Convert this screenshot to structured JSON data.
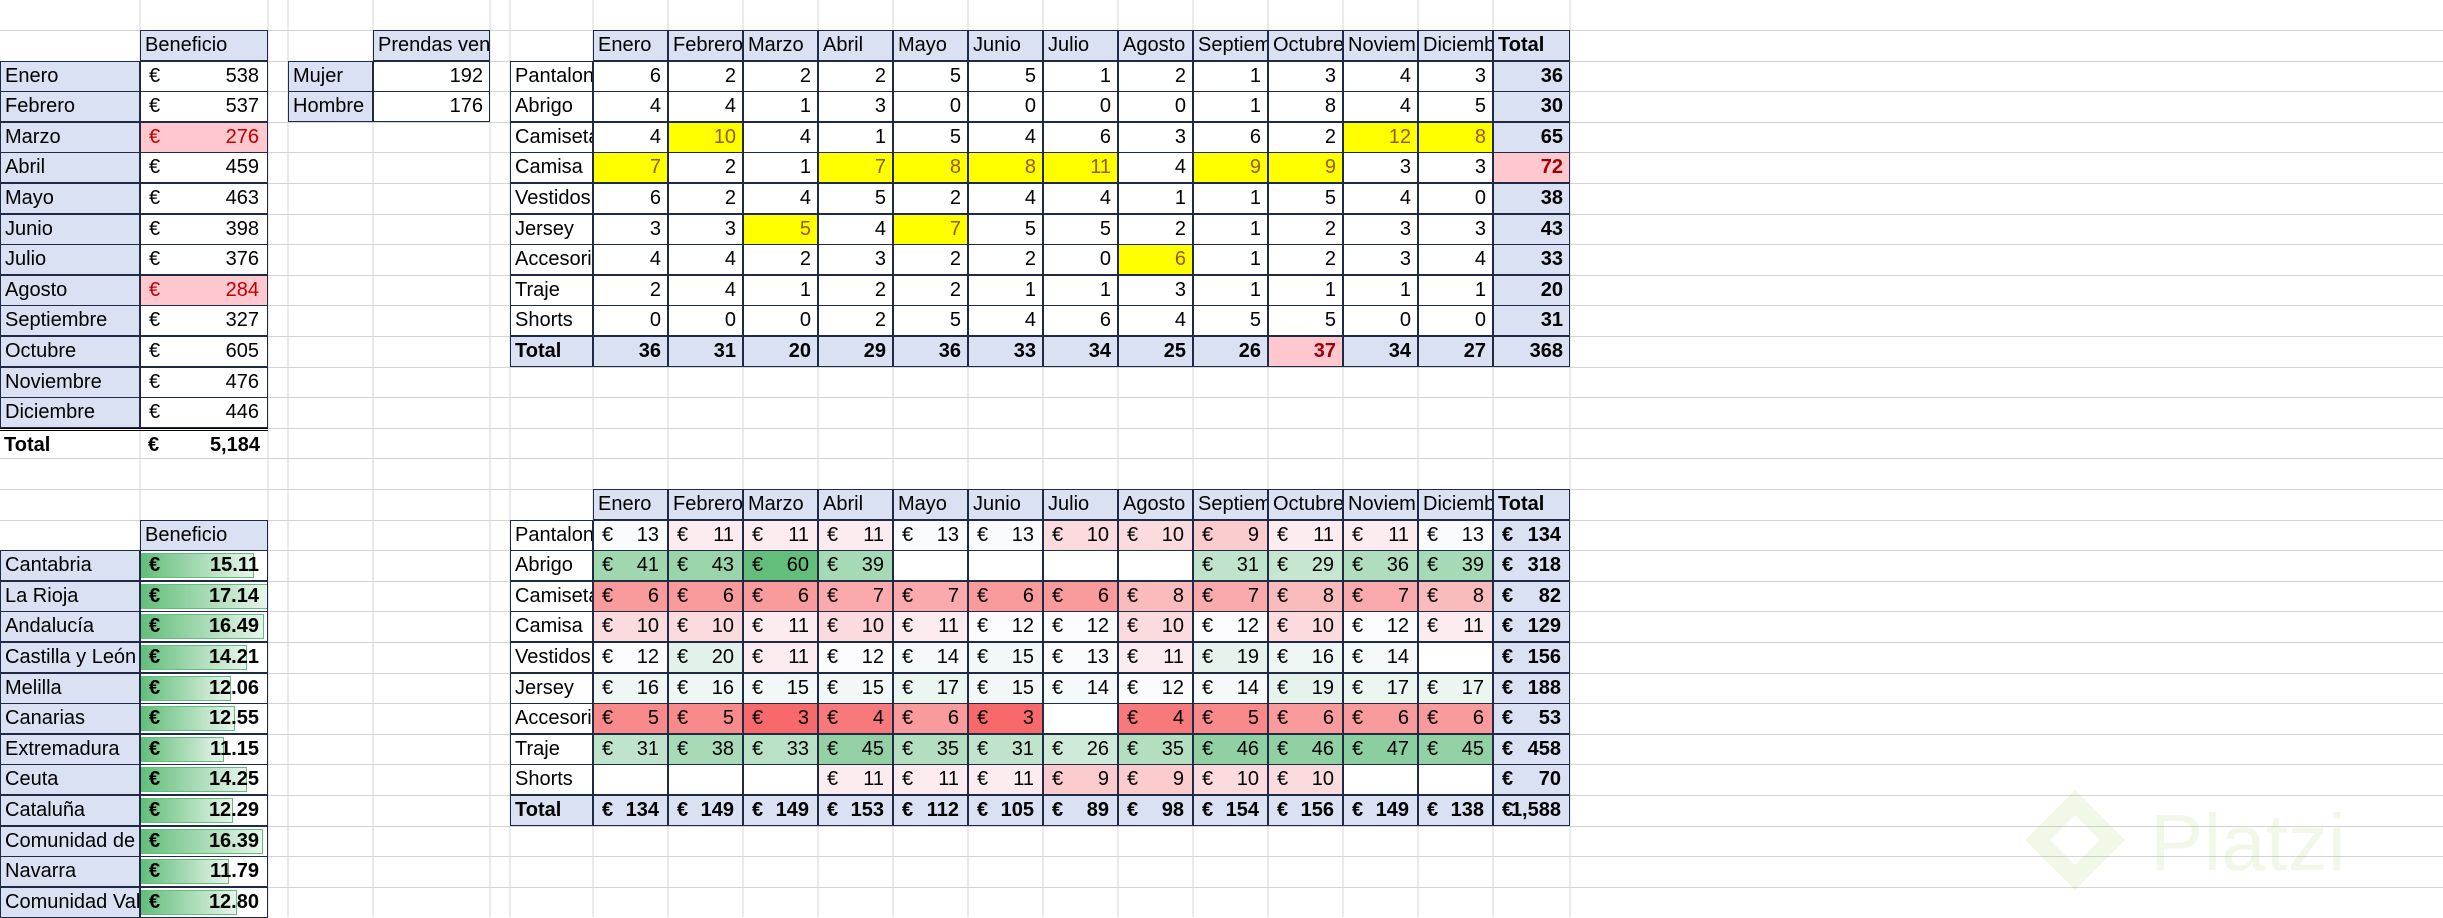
{
  "monthly_profit": {
    "header": "Beneficio",
    "currency": "€",
    "rows": [
      {
        "label": "Enero",
        "value": "538"
      },
      {
        "label": "Febrero",
        "value": "537"
      },
      {
        "label": "Marzo",
        "value": "276",
        "highlight": "low"
      },
      {
        "label": "Abril",
        "value": "459"
      },
      {
        "label": "Mayo",
        "value": "463"
      },
      {
        "label": "Junio",
        "value": "398"
      },
      {
        "label": "Julio",
        "value": "376"
      },
      {
        "label": "Agosto",
        "value": "284",
        "highlight": "low"
      },
      {
        "label": "Septiembre",
        "value": "327"
      },
      {
        "label": "Octubre",
        "value": "605"
      },
      {
        "label": "Noviembre",
        "value": "476"
      },
      {
        "label": "Diciembre",
        "value": "446"
      }
    ],
    "total_label": "Total",
    "total_value": "5,184"
  },
  "gender_sales": {
    "header": "Prendas vendidas",
    "rows": [
      {
        "label": "Mujer",
        "value": "192"
      },
      {
        "label": "Hombre",
        "value": "176"
      }
    ]
  },
  "region_profit": {
    "header": "Beneficio",
    "currency": "€",
    "rows": [
      {
        "label": "Cantabria",
        "value": "15.11"
      },
      {
        "label": "La Rioja",
        "value": "17.14"
      },
      {
        "label": "Andalucía",
        "value": "16.49"
      },
      {
        "label": "Castilla y León",
        "value": "14.21"
      },
      {
        "label": "Melilla",
        "value": "12.06"
      },
      {
        "label": "Canarias",
        "value": "12.55"
      },
      {
        "label": "Extremadura",
        "value": "11.15"
      },
      {
        "label": "Ceuta",
        "value": "14.25"
      },
      {
        "label": "Cataluña",
        "value": "12.29"
      },
      {
        "label": "Comunidad de Madrid",
        "value": "16.39"
      },
      {
        "label": "Navarra",
        "value": "11.79"
      },
      {
        "label": "Comunidad Valenciana",
        "value": "12.80"
      }
    ]
  },
  "months": [
    "Enero",
    "Febrero",
    "Marzo",
    "Abril",
    "Mayo",
    "Junio",
    "Julio",
    "Agosto",
    "Septiembre",
    "Octubre",
    "Noviembre",
    "Diciembre"
  ],
  "total_label": "Total",
  "units_table": {
    "rows": [
      {
        "label": "Pantalones",
        "values": [
          "6",
          "2",
          "2",
          "2",
          "5",
          "5",
          "1",
          "2",
          "1",
          "3",
          "4",
          "3"
        ],
        "total": "36",
        "hl": []
      },
      {
        "label": "Abrigo",
        "values": [
          "4",
          "4",
          "1",
          "3",
          "0",
          "0",
          "0",
          "0",
          "1",
          "8",
          "4",
          "5"
        ],
        "total": "30",
        "hl": []
      },
      {
        "label": "Camiseta",
        "values": [
          "4",
          "10",
          "4",
          "1",
          "5",
          "4",
          "6",
          "3",
          "6",
          "2",
          "12",
          "8"
        ],
        "total": "65",
        "hl": [
          1,
          10,
          11
        ]
      },
      {
        "label": "Camisa",
        "values": [
          "7",
          "2",
          "1",
          "7",
          "8",
          "8",
          "11",
          "4",
          "9",
          "9",
          "3",
          "3"
        ],
        "total": "72",
        "hl": [
          0,
          3,
          4,
          5,
          6,
          8,
          9
        ],
        "total_pink": true
      },
      {
        "label": "Vestidos",
        "values": [
          "6",
          "2",
          "4",
          "5",
          "2",
          "4",
          "4",
          "1",
          "1",
          "5",
          "4",
          "0"
        ],
        "total": "38",
        "hl": []
      },
      {
        "label": "Jersey",
        "values": [
          "3",
          "3",
          "5",
          "4",
          "7",
          "5",
          "5",
          "2",
          "1",
          "2",
          "3",
          "3"
        ],
        "total": "43",
        "hl": [
          2,
          4
        ]
      },
      {
        "label": "Accesorios",
        "values": [
          "4",
          "4",
          "2",
          "3",
          "2",
          "2",
          "0",
          "6",
          "1",
          "2",
          "3",
          "4"
        ],
        "total": "33",
        "hl": [
          7
        ]
      },
      {
        "label": "Traje",
        "values": [
          "2",
          "4",
          "1",
          "2",
          "2",
          "1",
          "1",
          "3",
          "1",
          "1",
          "1",
          "1"
        ],
        "total": "20",
        "hl": []
      },
      {
        "label": "Shorts",
        "values": [
          "0",
          "0",
          "0",
          "2",
          "5",
          "4",
          "6",
          "4",
          "5",
          "5",
          "0",
          "0"
        ],
        "total": "31",
        "hl": []
      }
    ],
    "totals": [
      "36",
      "31",
      "20",
      "29",
      "36",
      "33",
      "34",
      "25",
      "26",
      "37",
      "34",
      "27"
    ],
    "grand_total": "368",
    "totals_pink": [
      9
    ]
  },
  "profit_table": {
    "currency": "€",
    "rows": [
      {
        "label": "Pantalones",
        "values": [
          "13",
          "11",
          "11",
          "11",
          "13",
          "13",
          "10",
          "10",
          "9",
          "11",
          "11",
          "13"
        ],
        "total": "134"
      },
      {
        "label": "Abrigo",
        "values": [
          "41",
          "43",
          "60",
          "39",
          "",
          "",
          "",
          "",
          "31",
          "29",
          "36",
          "39"
        ],
        "total": "318"
      },
      {
        "label": "Camiseta",
        "values": [
          "6",
          "6",
          "6",
          "7",
          "7",
          "6",
          "6",
          "8",
          "7",
          "8",
          "7",
          "8"
        ],
        "total": "82"
      },
      {
        "label": "Camisa",
        "values": [
          "10",
          "10",
          "11",
          "10",
          "11",
          "12",
          "12",
          "10",
          "12",
          "10",
          "12",
          "11"
        ],
        "total": "129"
      },
      {
        "label": "Vestidos",
        "values": [
          "12",
          "20",
          "11",
          "12",
          "14",
          "15",
          "13",
          "11",
          "19",
          "16",
          "14",
          ""
        ],
        "total": "156"
      },
      {
        "label": "Jersey",
        "values": [
          "16",
          "16",
          "15",
          "15",
          "17",
          "15",
          "14",
          "12",
          "14",
          "19",
          "17",
          "17"
        ],
        "total": "188"
      },
      {
        "label": "Accesorios",
        "values": [
          "5",
          "5",
          "3",
          "4",
          "6",
          "3",
          "",
          "4",
          "5",
          "6",
          "6",
          "6"
        ],
        "total": "53"
      },
      {
        "label": "Traje",
        "values": [
          "31",
          "38",
          "33",
          "45",
          "35",
          "31",
          "26",
          "35",
          "46",
          "46",
          "47",
          "45"
        ],
        "total": "458"
      },
      {
        "label": "Shorts",
        "values": [
          "",
          "",
          "",
          "11",
          "11",
          "11",
          "9",
          "9",
          "10",
          "10",
          "",
          ""
        ],
        "total": "70"
      }
    ],
    "totals": [
      "134",
      "149",
      "149",
      "153",
      "112",
      "105",
      "89",
      "98",
      "154",
      "156",
      "149",
      "138"
    ],
    "grand_total": "1,588"
  },
  "colors": {
    "header_fill": "#d9e1f2",
    "yellow_highlight": "#ffff00",
    "pink_highlight": "#ffc7ce",
    "scale_red": "#f8696b",
    "scale_green": "#63be7b"
  },
  "watermark": {
    "text": "Platzi",
    "icon": "platzi-logo-icon"
  }
}
